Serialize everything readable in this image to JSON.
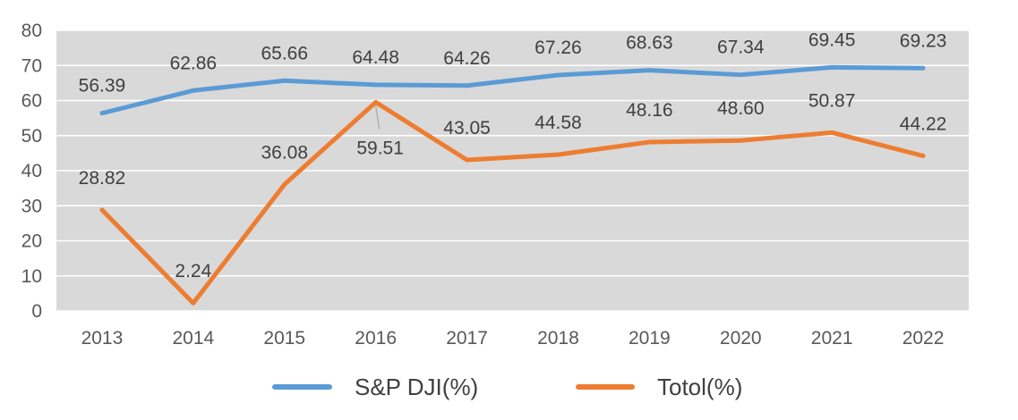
{
  "chart_data": {
    "type": "line",
    "title": "",
    "xlabel": "",
    "ylabel": "",
    "categories": [
      "2013",
      "2014",
      "2015",
      "2016",
      "2017",
      "2018",
      "2019",
      "2020",
      "2021",
      "2022"
    ],
    "ylim": [
      0,
      80
    ],
    "yticks": [
      0,
      10,
      20,
      30,
      40,
      50,
      60,
      70,
      80
    ],
    "grid": true,
    "legend_position": "bottom",
    "plot_background": "#d9d9d9",
    "series": [
      {
        "name": "S&P DJI(%)",
        "color": "#5b9bd5",
        "values": [
          56.39,
          62.86,
          65.66,
          64.48,
          64.26,
          67.26,
          68.63,
          67.34,
          69.45,
          69.23
        ],
        "labels": [
          "56.39",
          "62.86",
          "65.66",
          "64.48",
          "64.26",
          "67.26",
          "68.63",
          "67.34",
          "69.45",
          "69.23"
        ]
      },
      {
        "name": "Totol(%)",
        "color": "#ed7d31",
        "values": [
          28.82,
          2.24,
          36.08,
          59.51,
          43.05,
          44.58,
          48.16,
          48.6,
          50.87,
          44.22
        ],
        "labels": [
          "28.82",
          "2.24",
          "36.08",
          "59.51",
          "43.05",
          "44.58",
          "48.16",
          "48.60",
          "50.87",
          "44.22"
        ]
      }
    ]
  }
}
